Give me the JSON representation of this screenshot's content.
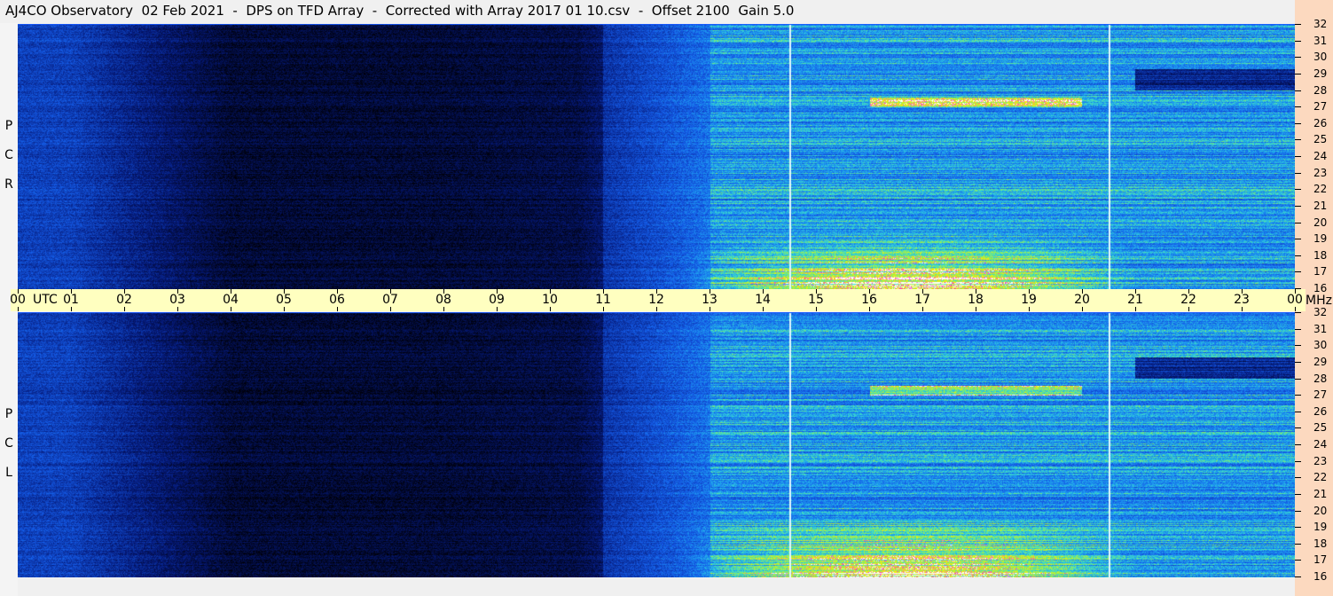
{
  "title": "AJ4CO Observatory  02 Feb 2021  -  DPS on TFD Array  -  Corrected with Array 2017 01 10.csv  -  Offset 2100  Gain 5.0",
  "panels": [
    {
      "label": [
        "R",
        "C",
        "P"
      ]
    },
    {
      "label": [
        "L",
        "C",
        "P"
      ]
    }
  ],
  "colors": {
    "background": "#f0f0f0",
    "time_axis": "#ffffc0",
    "freq_axis": "#fcd9bf",
    "quiet": "#000010",
    "low": "#0a3cd0",
    "high": "#9cf04a"
  },
  "chart_data": {
    "type": "heatmap",
    "title": "AJ4CO Observatory  02 Feb 2021  -  DPS on TFD Array  -  Corrected with Array 2017 01 10.csv  -  Offset 2100  Gain 5.0",
    "x_unit": "UTC",
    "y_unit": "MHz",
    "x_ticks": [
      "00",
      "01",
      "02",
      "03",
      "04",
      "05",
      "06",
      "07",
      "08",
      "09",
      "10",
      "11",
      "12",
      "13",
      "14",
      "15",
      "16",
      "17",
      "18",
      "19",
      "20",
      "21",
      "22",
      "23",
      "00"
    ],
    "y_ticks": [
      "32",
      "31",
      "30",
      "29",
      "28",
      "27",
      "26",
      "25",
      "24",
      "23",
      "22",
      "21",
      "20",
      "19",
      "18",
      "17",
      "16"
    ],
    "xlim": [
      0,
      24
    ],
    "ylim": [
      16,
      32
    ],
    "colormap": "black-blue-cyan-green-yellow-magenta-white",
    "vertical_markers_utc": [
      14.5,
      20.5
    ]
  }
}
